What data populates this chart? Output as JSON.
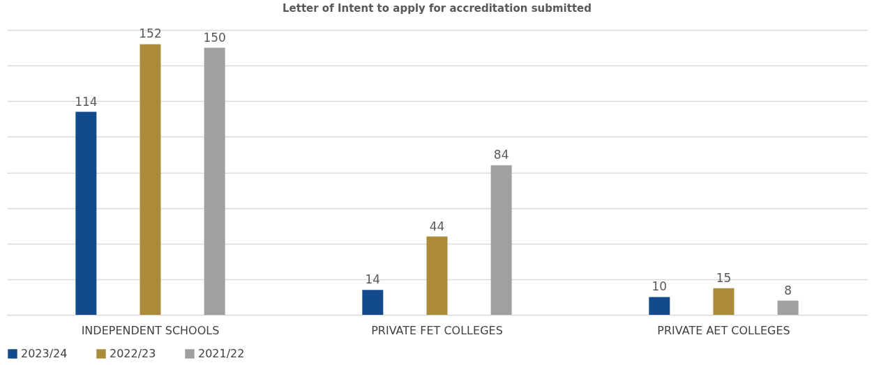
{
  "chart_data": {
    "type": "bar",
    "title": "Letter of Intent to apply for accreditation submitted",
    "categories": [
      "INDEPENDENT SCHOOLS",
      "PRIVATE FET COLLEGES",
      "PRIVATE AET COLLEGES"
    ],
    "series": [
      {
        "name": "2023/24",
        "color": "#124a8c",
        "values": [
          114,
          14,
          10
        ]
      },
      {
        "name": "2022/23",
        "color": "#ab8a3a",
        "values": [
          152,
          44,
          15
        ]
      },
      {
        "name": "2021/22",
        "color": "#a0a0a2",
        "values": [
          150,
          84,
          8
        ]
      }
    ],
    "ylim": [
      0,
      160
    ],
    "yticks": [
      {
        "value": 0,
        "label": null
      },
      {
        "value": 20,
        "label": null
      },
      {
        "value": 40,
        "label": null
      },
      {
        "value": 60,
        "label": null
      },
      {
        "value": 80,
        "label": null
      },
      {
        "value": 100,
        "label": null
      },
      {
        "value": 120,
        "label": null
      },
      {
        "value": 140,
        "label": null
      },
      {
        "value": 160,
        "label": null
      }
    ],
    "grid": "y",
    "legend": "bottom",
    "tick_labels": "x",
    "data_labels": true
  }
}
